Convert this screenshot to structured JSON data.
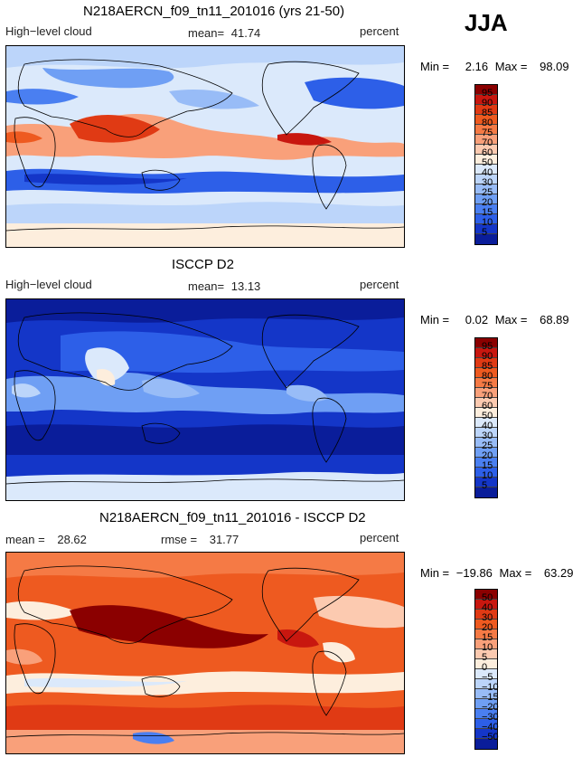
{
  "season": "JJA",
  "panels": [
    {
      "id": "model",
      "title": "N218AERCN_f09_tn11_201016 (yrs 21-50)",
      "left_label": "High−level cloud",
      "center_label": "mean=",
      "center_value": "41.74",
      "right_label": "percent",
      "min_label": "Min =",
      "min_value": "2.16",
      "max_label": "Max =",
      "max_value": "98.09",
      "colorbar_labels": [
        "95",
        "90",
        "85",
        "80",
        "75",
        "70",
        "60",
        "50",
        "40",
        "30",
        "25",
        "20",
        "15",
        "10",
        "5"
      ],
      "colorbar_colors": [
        "#8b0000",
        "#c8170f",
        "#e03a14",
        "#ee5a20",
        "#f57a45",
        "#f9a07a",
        "#fccab0",
        "#fdeedd",
        "#dbe9fb",
        "#bcd5fa",
        "#98bcf7",
        "#6f9ff4",
        "#4a7ff1",
        "#2d5fe8",
        "#1436c8",
        "#0a1d9a"
      ]
    },
    {
      "id": "obs",
      "title": "ISCCP D2",
      "left_label": "High−level cloud",
      "center_label": "mean=",
      "center_value": "13.13",
      "right_label": "percent",
      "min_label": "Min =",
      "min_value": "0.02",
      "max_label": "Max =",
      "max_value": "68.89",
      "colorbar_labels": [
        "95",
        "90",
        "85",
        "80",
        "75",
        "70",
        "60",
        "50",
        "40",
        "30",
        "25",
        "20",
        "15",
        "10",
        "5"
      ],
      "colorbar_colors": [
        "#8b0000",
        "#c8170f",
        "#e03a14",
        "#ee5a20",
        "#f57a45",
        "#f9a07a",
        "#fccab0",
        "#fdeedd",
        "#dbe9fb",
        "#bcd5fa",
        "#98bcf7",
        "#6f9ff4",
        "#4a7ff1",
        "#2d5fe8",
        "#1436c8",
        "#0a1d9a"
      ]
    },
    {
      "id": "diff",
      "title": "N218AERCN_f09_tn11_201016 - ISCCP D2",
      "left_label": "mean =",
      "left_value": "28.62",
      "center_label": "rmse =",
      "center_value": "31.77",
      "right_label": "percent",
      "min_label": "Min =",
      "min_value": "−19.86",
      "max_label": "Max =",
      "max_value": "63.29",
      "colorbar_labels": [
        "50",
        "40",
        "30",
        "20",
        "15",
        "10",
        "5",
        "0",
        "−5",
        "−10",
        "−15",
        "−20",
        "−30",
        "−40",
        "−50"
      ],
      "colorbar_colors": [
        "#8b0000",
        "#c8170f",
        "#e03a14",
        "#ee5a20",
        "#f57a45",
        "#f9a07a",
        "#fccab0",
        "#fdeedd",
        "#dbe9fb",
        "#bcd5fa",
        "#98bcf7",
        "#6f9ff4",
        "#4a7ff1",
        "#2d5fe8",
        "#1436c8",
        "#0a1d9a"
      ]
    }
  ],
  "chart_data": [
    {
      "type": "heatmap",
      "title": "N218AERCN_f09_tn11_201016 (yrs 21-50)",
      "variable": "High-level cloud",
      "units": "percent",
      "mean": 41.74,
      "min": 2.16,
      "max": 98.09,
      "levels": [
        5,
        10,
        15,
        20,
        25,
        30,
        40,
        50,
        60,
        70,
        75,
        80,
        85,
        90,
        95
      ]
    },
    {
      "type": "heatmap",
      "title": "ISCCP D2",
      "variable": "High-level cloud",
      "units": "percent",
      "mean": 13.13,
      "min": 0.02,
      "max": 68.89,
      "levels": [
        5,
        10,
        15,
        20,
        25,
        30,
        40,
        50,
        60,
        70,
        75,
        80,
        85,
        90,
        95
      ]
    },
    {
      "type": "heatmap",
      "title": "N218AERCN_f09_tn11_201016 - ISCCP D2",
      "units": "percent",
      "mean": 28.62,
      "rmse": 31.77,
      "min": -19.86,
      "max": 63.29,
      "levels": [
        -50,
        -40,
        -30,
        -20,
        -15,
        -10,
        -5,
        0,
        5,
        10,
        15,
        20,
        30,
        40,
        50
      ]
    }
  ]
}
